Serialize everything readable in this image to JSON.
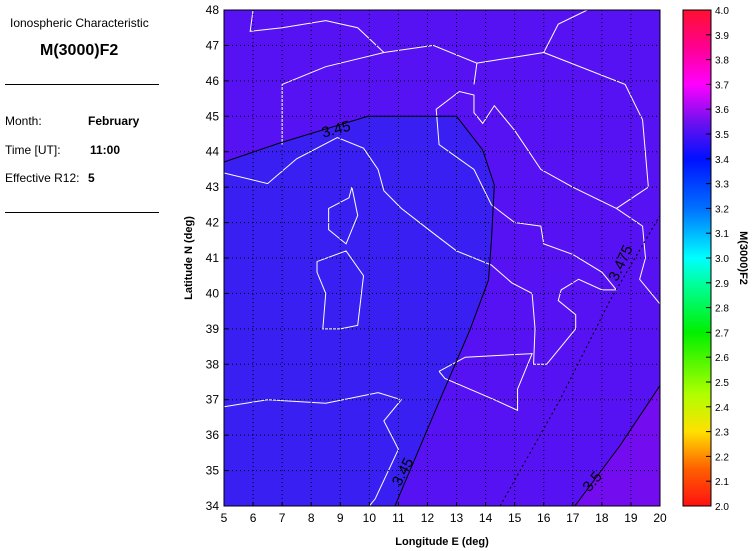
{
  "sidebar": {
    "heading": "Ionospheric Characteristic",
    "characteristic": "M(3000)F2",
    "month_label": "Month:",
    "month_value": "February",
    "time_label": "Time [UT]:",
    "time_value": "11:00",
    "r12_label": "Effective R12:",
    "r12_value": "5"
  },
  "chart_data": {
    "type": "heatmap",
    "xlabel": "Longitude E (deg)",
    "ylabel": "Latitude N (deg)",
    "xlim": [
      5,
      20
    ],
    "ylim": [
      34,
      48
    ],
    "xticks": [
      "5",
      "6",
      "7",
      "8",
      "9",
      "10",
      "11",
      "12",
      "13",
      "14",
      "15",
      "16",
      "17",
      "18",
      "19",
      "20"
    ],
    "yticks": [
      "34",
      "35",
      "36",
      "37",
      "38",
      "39",
      "40",
      "41",
      "42",
      "43",
      "44",
      "45",
      "46",
      "47",
      "48"
    ],
    "grid": true,
    "colorbar": {
      "label": "M(3000)F2",
      "range": [
        2.0,
        4.0
      ],
      "ticks": [
        "2.0",
        "2.1",
        "2.2",
        "2.3",
        "2.4",
        "2.5",
        "2.6",
        "2.7",
        "2.8",
        "2.9",
        "3.0",
        "3.1",
        "3.2",
        "3.3",
        "3.4",
        "3.5",
        "3.6",
        "3.7",
        "3.8",
        "3.9",
        "4.0"
      ],
      "stops": [
        [
          2.0,
          "#ff1010"
        ],
        [
          2.15,
          "#ff6000"
        ],
        [
          2.3,
          "#ffe000"
        ],
        [
          2.45,
          "#b0ff00"
        ],
        [
          2.7,
          "#00f000"
        ],
        [
          2.9,
          "#00ffa0"
        ],
        [
          3.0,
          "#00ffff"
        ],
        [
          3.2,
          "#0070ff"
        ],
        [
          3.4,
          "#0010ff"
        ],
        [
          3.55,
          "#7010f0"
        ],
        [
          3.7,
          "#ff00ff"
        ],
        [
          3.85,
          "#ff0090"
        ],
        [
          4.0,
          "#ff1030"
        ]
      ]
    },
    "regions": [
      {
        "range": "< 3.45",
        "color": "#3a1ff2"
      },
      {
        "range": "3.45 - 3.5",
        "color": "#5612f2"
      },
      {
        "range": "> 3.5",
        "color": "#740cf0"
      }
    ],
    "contours": [
      {
        "level": "3.45",
        "style": "solid",
        "points": [
          [
            5,
            43.71
          ],
          [
            6.93,
            44.25
          ],
          [
            9.95,
            45.0
          ],
          [
            13.0,
            45.0
          ],
          [
            13.9,
            44.05
          ],
          [
            14.3,
            43.06
          ],
          [
            14.2,
            41.5
          ],
          [
            14.1,
            40.38
          ],
          [
            13.46,
            38.97
          ],
          [
            12.43,
            37.0
          ],
          [
            10.88,
            34.0
          ]
        ],
        "labels": [
          {
            "lon": 8.9,
            "lat": 44.5,
            "angle": -15
          },
          {
            "lon": 11.3,
            "lat": 34.9,
            "angle": -62
          }
        ]
      },
      {
        "level": "3.475",
        "style": "dotted",
        "points": [
          [
            14.5,
            34
          ],
          [
            16.56,
            37
          ],
          [
            18.28,
            39.8
          ],
          [
            20,
            42.2
          ]
        ],
        "labels": [
          {
            "lon": 18.8,
            "lat": 40.8,
            "angle": -65
          }
        ]
      },
      {
        "level": "3.5",
        "style": "solid",
        "points": [
          [
            17.07,
            34
          ],
          [
            18.62,
            35.7
          ],
          [
            20,
            37.4
          ]
        ],
        "labels": [
          {
            "lon": 17.8,
            "lat": 34.6,
            "angle": -50
          }
        ]
      }
    ]
  }
}
